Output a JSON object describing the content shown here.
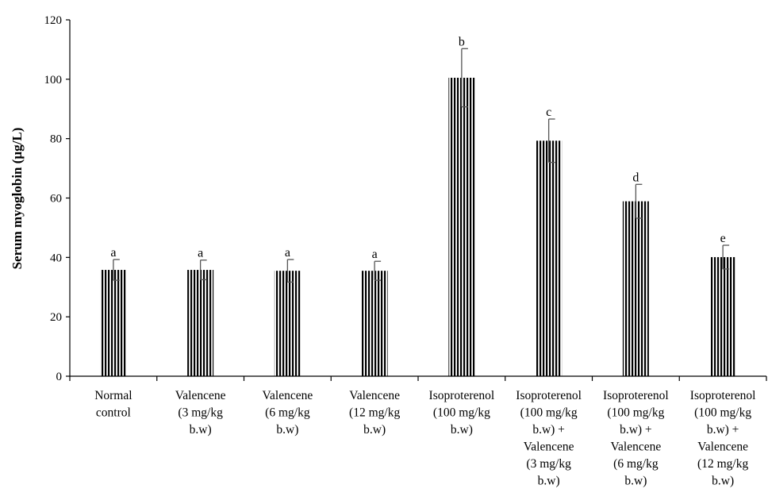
{
  "chart_data": {
    "type": "bar",
    "title": "",
    "xlabel": "",
    "ylabel": "Serum myoglobin (µg/L)",
    "ylim": [
      0,
      120
    ],
    "yticks": [
      0,
      20,
      40,
      60,
      80,
      100,
      120
    ],
    "grid": false,
    "legend": "none",
    "bar_fill": "vertical black stripes on white",
    "categories": [
      [
        "Normal",
        "control"
      ],
      [
        "Valencene",
        "(3 mg/kg",
        "b.w)"
      ],
      [
        "Valencene",
        "(6 mg/kg",
        "b.w)"
      ],
      [
        "Valencene",
        "(12 mg/kg",
        "b.w)"
      ],
      [
        "Isoproterenol",
        "(100  mg/kg",
        "b.w)"
      ],
      [
        "Isoproterenol",
        "(100  mg/kg",
        "b.w) +",
        "Valencene",
        "(3 mg/kg",
        "b.w)"
      ],
      [
        "Isoproterenol",
        "(100  mg/kg",
        "b.w) +",
        "Valencene",
        "(6 mg/kg",
        "b.w)"
      ],
      [
        "Isoproterenol",
        "(100  mg/kg",
        "b.w) +",
        "Valencene",
        "(12 mg/kg",
        "b.w)"
      ]
    ],
    "values": [
      35.8,
      35.8,
      35.5,
      35.5,
      100.5,
      79.3,
      58.9,
      40.1
    ],
    "errors": [
      3.5,
      3.3,
      3.8,
      3.2,
      9.8,
      7.3,
      5.7,
      4.0
    ],
    "significance": [
      "a",
      "a",
      "a",
      "a",
      "b",
      "c",
      "d",
      "e"
    ]
  }
}
